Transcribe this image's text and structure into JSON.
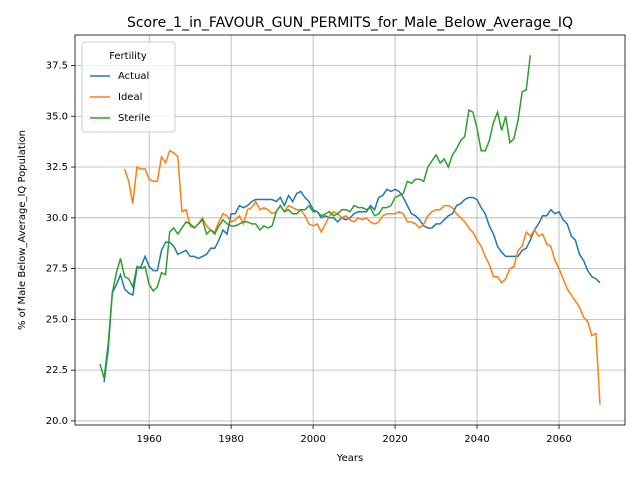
{
  "chart_data": {
    "type": "line",
    "title": "Score_1_in_FAVOUR_GUN_PERMITS_for_Male_Below_Average_IQ",
    "xlabel": "Years",
    "ylabel": "% of Male Below_Average_IQ Population",
    "legend_title": "Fertility",
    "legend": "upper left",
    "grid": true,
    "xlim": [
      1941.9,
      2076.1
    ],
    "ylim": [
      19.8,
      39.0
    ],
    "xticks": [
      1960,
      1980,
      2000,
      2020,
      2040,
      2060
    ],
    "yticks": [
      {
        "value": 20,
        "label": "20.0"
      },
      22.5,
      {
        "value": 25,
        "label": "25.0"
      },
      27.5,
      {
        "value": 30,
        "label": "30.0"
      },
      32.5,
      {
        "value": 35,
        "label": "35.0"
      },
      37.5
    ],
    "x": [
      1948,
      1949,
      1950,
      1951,
      1952,
      1953,
      1954,
      1955,
      1956,
      1957,
      1958,
      1959,
      1960,
      1961,
      1962,
      1963,
      1964,
      1965,
      1966,
      1967,
      1968,
      1969,
      1970,
      1971,
      1972,
      1973,
      1974,
      1975,
      1976,
      1977,
      1978,
      1979,
      1980,
      1981,
      1982,
      1983,
      1984,
      1985,
      1986,
      1987,
      1988,
      1989,
      1990,
      1991,
      1992,
      1993,
      1994,
      1995,
      1996,
      1997,
      1998,
      1999,
      2000,
      2001,
      2002,
      2003,
      2004,
      2005,
      2006,
      2007,
      2008,
      2009,
      2010,
      2011,
      2012,
      2013,
      2014,
      2015,
      2016,
      2017,
      2018,
      2019,
      2020,
      2021,
      2022,
      2023,
      2024,
      2025,
      2026,
      2027,
      2028,
      2029,
      2030,
      2031,
      2032,
      2033,
      2034,
      2035,
      2036,
      2037,
      2038,
      2039,
      2040,
      2041,
      2042,
      2043,
      2044,
      2045,
      2046,
      2047,
      2048,
      2049,
      2050,
      2051,
      2052,
      2053,
      2054,
      2055,
      2056,
      2057,
      2058,
      2059,
      2060,
      2061,
      2062,
      2063,
      2064,
      2065,
      2066,
      2067,
      2068,
      2069,
      2070
    ],
    "series": [
      {
        "name": "Actual",
        "color": "#1f77b4",
        "values": [
          null,
          21.9,
          23.5,
          26.3,
          26.7,
          27.2,
          26.5,
          26.3,
          26.2,
          27.5,
          27.6,
          28.1,
          27.6,
          27.4,
          27.4,
          28.4,
          28.8,
          28.8,
          28.6,
          28.2,
          28.3,
          28.4,
          28.1,
          28.1,
          28.0,
          28.1,
          28.2,
          28.5,
          28.5,
          28.9,
          29.4,
          29.2,
          30.2,
          30.2,
          30.6,
          30.5,
          30.6,
          30.8,
          30.9,
          30.9,
          30.9,
          30.9,
          30.9,
          30.8,
          31.0,
          30.6,
          31.1,
          30.8,
          31.2,
          31.3,
          31.0,
          30.8,
          30.4,
          30.3,
          30.0,
          30.1,
          30.0,
          30.0,
          29.8,
          30.0,
          29.9,
          30.0,
          30.2,
          30.3,
          30.3,
          30.3,
          30.6,
          30.4,
          31.0,
          31.1,
          31.4,
          31.3,
          31.4,
          31.3,
          31.0,
          30.6,
          30.2,
          30.1,
          29.9,
          29.6,
          29.5,
          29.5,
          29.7,
          29.7,
          29.9,
          30.1,
          30.2,
          30.6,
          30.7,
          30.9,
          31.0,
          31.0,
          30.9,
          30.5,
          30.2,
          29.6,
          29.2,
          28.6,
          28.3,
          28.1,
          28.1,
          28.1,
          28.1,
          28.4,
          28.5,
          28.9,
          29.4,
          29.7,
          30.1,
          30.1,
          30.4,
          30.2,
          30.3,
          29.9,
          29.7,
          29.1,
          28.9,
          28.2,
          27.9,
          27.4,
          27.1,
          27.0,
          26.8
        ]
      },
      {
        "name": "Ideal",
        "color": "#ff7f0e",
        "values": [
          null,
          null,
          null,
          null,
          null,
          null,
          32.4,
          31.8,
          30.7,
          32.5,
          32.4,
          32.4,
          31.9,
          31.8,
          31.8,
          33.0,
          32.7,
          33.3,
          33.2,
          33.0,
          30.3,
          30.4,
          29.6,
          29.5,
          29.7,
          30.0,
          29.6,
          29.4,
          29.3,
          29.8,
          30.2,
          30.1,
          29.8,
          29.9,
          30.1,
          29.7,
          30.4,
          30.5,
          30.8,
          30.4,
          30.5,
          30.4,
          30.2,
          30.3,
          30.6,
          30.3,
          30.6,
          30.5,
          30.4,
          30.4,
          30.1,
          29.7,
          29.6,
          29.7,
          29.3,
          29.7,
          30.1,
          30.3,
          30.2,
          30.0,
          30.1,
          29.9,
          29.8,
          30.0,
          29.9,
          30.0,
          29.8,
          29.7,
          29.8,
          30.1,
          30.2,
          30.2,
          30.2,
          30.3,
          30.2,
          29.8,
          29.8,
          29.7,
          29.5,
          29.7,
          30.1,
          30.3,
          30.4,
          30.4,
          30.6,
          30.6,
          30.5,
          30.2,
          30.0,
          29.8,
          29.5,
          29.3,
          28.9,
          28.6,
          28.1,
          27.7,
          27.1,
          27.1,
          26.8,
          27.0,
          27.5,
          27.6,
          28.4,
          28.6,
          29.3,
          29.1,
          29.4,
          29.1,
          29.2,
          28.7,
          28.6,
          27.9,
          27.5,
          27.0,
          26.5,
          26.2,
          25.9,
          25.6,
          25.1,
          24.9,
          24.2,
          24.3,
          20.8
        ]
      },
      {
        "name": "Sterile",
        "color": "#2ca02c",
        "values": [
          22.8,
          22.1,
          23.8,
          26.3,
          27.3,
          28.0,
          27.1,
          27.0,
          26.6,
          27.6,
          27.5,
          27.6,
          26.7,
          26.4,
          26.6,
          27.3,
          27.2,
          29.3,
          29.5,
          29.2,
          29.5,
          29.8,
          29.7,
          29.5,
          29.7,
          29.9,
          29.2,
          29.4,
          29.2,
          29.6,
          29.9,
          29.7,
          29.6,
          29.6,
          29.7,
          29.8,
          29.8,
          29.7,
          29.7,
          29.4,
          29.6,
          29.5,
          29.6,
          30.3,
          30.6,
          30.3,
          30.4,
          30.2,
          30.2,
          30.4,
          30.4,
          30.6,
          30.3,
          30.3,
          30.1,
          30.2,
          30.3,
          30.1,
          30.2,
          30.4,
          30.4,
          30.3,
          30.6,
          30.5,
          30.5,
          30.4,
          30.5,
          30.1,
          30.2,
          30.5,
          30.5,
          30.6,
          31.0,
          31.1,
          31.2,
          31.8,
          31.7,
          31.9,
          31.9,
          31.8,
          32.5,
          32.8,
          33.1,
          32.7,
          32.9,
          32.5,
          33.1,
          33.4,
          33.8,
          34.0,
          35.3,
          35.2,
          34.4,
          33.3,
          33.3,
          33.8,
          34.7,
          35.2,
          34.3,
          35.0,
          33.7,
          33.9,
          34.8,
          36.2,
          36.3,
          38.0,
          null,
          null,
          null,
          null,
          null,
          null,
          null,
          null,
          null,
          null,
          null,
          null,
          null,
          null,
          null,
          null,
          null
        ]
      }
    ]
  }
}
